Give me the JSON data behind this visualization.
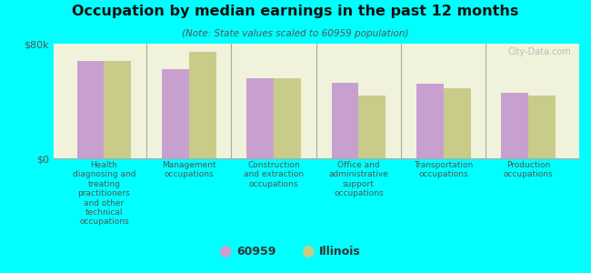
{
  "title": "Occupation by median earnings in the past 12 months",
  "subtitle": "(Note: State values scaled to 60959 population)",
  "background_color": "#00FFFF",
  "plot_bg_color": "#f0f2dc",
  "categories": [
    "Health\ndiagnosing and\ntreating\npractitioners\nand other\ntechnical\noccupations",
    "Management\noccupations",
    "Construction\nand extraction\noccupations",
    "Office and\nadministrative\nsupport\noccupations",
    "Transportation\noccupations",
    "Production\noccupations"
  ],
  "values_60959": [
    68000,
    62000,
    56000,
    53000,
    52000,
    46000
  ],
  "values_illinois": [
    68000,
    74000,
    56000,
    44000,
    49000,
    44000
  ],
  "ylim": [
    0,
    80000
  ],
  "yticks": [
    0,
    80000
  ],
  "ytick_labels": [
    "$0",
    "$80k"
  ],
  "color_60959": "#c8a0d0",
  "color_illinois": "#c8cc88",
  "legend_labels": [
    "60959",
    "Illinois"
  ],
  "bar_width": 0.32,
  "watermark": "City-Data.com"
}
